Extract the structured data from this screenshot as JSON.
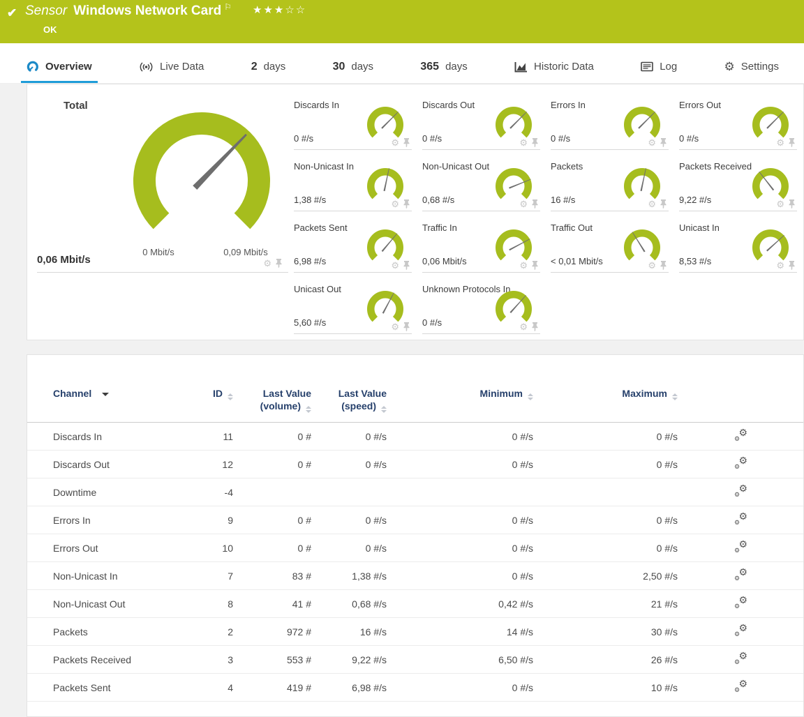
{
  "header": {
    "kind_label": "Sensor",
    "title": "Windows Network Card",
    "status": "OK",
    "rating_filled": 3,
    "rating_total": 5
  },
  "tabs": [
    {
      "id": "overview",
      "label": "Overview",
      "icon": "gauge-icon",
      "active": true
    },
    {
      "id": "live-data",
      "label": "Live Data",
      "icon": "live-data-icon",
      "active": false
    },
    {
      "id": "2-days",
      "prefix": "2",
      "label": "days",
      "active": false
    },
    {
      "id": "30-days",
      "prefix": "30",
      "label": "days",
      "active": false
    },
    {
      "id": "365-days",
      "prefix": "365",
      "label": "days",
      "active": false
    },
    {
      "id": "historic-data",
      "label": "Historic Data",
      "icon": "historic-data-icon",
      "active": false
    },
    {
      "id": "log",
      "label": "Log",
      "icon": "log-icon",
      "active": false
    },
    {
      "id": "settings",
      "label": "Settings",
      "icon": "settings-icon",
      "active": false
    }
  ],
  "total_gauge": {
    "title": "Total",
    "value": "0,06 Mbit/s",
    "scale_min": "0 Mbit/s",
    "scale_max": "0,09 Mbit/s",
    "needle_deg": 44
  },
  "gauges": [
    {
      "title": "Discards In",
      "value": "0 #/s",
      "needle_deg": 45
    },
    {
      "title": "Discards Out",
      "value": "0 #/s",
      "needle_deg": 45
    },
    {
      "title": "Errors In",
      "value": "0 #/s",
      "needle_deg": 45
    },
    {
      "title": "Errors Out",
      "value": "0 #/s",
      "needle_deg": 45
    },
    {
      "title": "Non-Unicast In",
      "value": "1,38 #/s",
      "needle_deg": 12
    },
    {
      "title": "Non-Unicast Out",
      "value": "0,68 #/s",
      "needle_deg": 68
    },
    {
      "title": "Packets",
      "value": "16 #/s",
      "needle_deg": 12
    },
    {
      "title": "Packets Received",
      "value": "9,22 #/s",
      "needle_deg": -38
    },
    {
      "title": "Packets Sent",
      "value": "6,98 #/s",
      "needle_deg": 40
    },
    {
      "title": "Traffic In",
      "value": "0,06 Mbit/s",
      "needle_deg": 62
    },
    {
      "title": "Traffic Out",
      "value": "< 0,01 Mbit/s",
      "needle_deg": -32
    },
    {
      "title": "Unicast In",
      "value": "8,53 #/s",
      "needle_deg": 48
    },
    {
      "title": "Unicast Out",
      "value": "5,60 #/s",
      "needle_deg": 28
    },
    {
      "title": "Unknown Protocols In",
      "value": "0 #/s",
      "needle_deg": 42
    }
  ],
  "table": {
    "columns": [
      {
        "key": "channel",
        "label": "Channel",
        "sort": "sorted-desc"
      },
      {
        "key": "id",
        "label": "ID",
        "sort": "both"
      },
      {
        "key": "last-value-volume",
        "label": "Last Value",
        "label2": "(volume)",
        "sort": "both"
      },
      {
        "key": "last-value-speed",
        "label": "Last Value",
        "label2": "(speed)",
        "sort": "both"
      },
      {
        "key": "minimum",
        "label": "Minimum",
        "sort": "both"
      },
      {
        "key": "maximum",
        "label": "Maximum",
        "sort": "both"
      }
    ],
    "rows": [
      {
        "channel": "Discards In",
        "id": "11",
        "volume": "0 #",
        "speed": "0 #/s",
        "minimum": "0 #/s",
        "maximum": "0 #/s"
      },
      {
        "channel": "Discards Out",
        "id": "12",
        "volume": "0 #",
        "speed": "0 #/s",
        "minimum": "0 #/s",
        "maximum": "0 #/s"
      },
      {
        "channel": "Downtime",
        "id": "-4",
        "volume": "",
        "speed": "",
        "minimum": "",
        "maximum": ""
      },
      {
        "channel": "Errors In",
        "id": "9",
        "volume": "0 #",
        "speed": "0 #/s",
        "minimum": "0 #/s",
        "maximum": "0 #/s"
      },
      {
        "channel": "Errors Out",
        "id": "10",
        "volume": "0 #",
        "speed": "0 #/s",
        "minimum": "0 #/s",
        "maximum": "0 #/s"
      },
      {
        "channel": "Non-Unicast In",
        "id": "7",
        "volume": "83 #",
        "speed": "1,38 #/s",
        "minimum": "0 #/s",
        "maximum": "2,50 #/s"
      },
      {
        "channel": "Non-Unicast Out",
        "id": "8",
        "volume": "41 #",
        "speed": "0,68 #/s",
        "minimum": "0,42 #/s",
        "maximum": "21 #/s"
      },
      {
        "channel": "Packets",
        "id": "2",
        "volume": "972 #",
        "speed": "16 #/s",
        "minimum": "14 #/s",
        "maximum": "30 #/s"
      },
      {
        "channel": "Packets Received",
        "id": "3",
        "volume": "553 #",
        "speed": "9,22 #/s",
        "minimum": "6,50 #/s",
        "maximum": "26 #/s"
      },
      {
        "channel": "Packets Sent",
        "id": "4",
        "volume": "419 #",
        "speed": "6,98 #/s",
        "minimum": "0 #/s",
        "maximum": "10 #/s"
      }
    ]
  },
  "icon_glyphs": {
    "check": "✔",
    "flag": "⚐",
    "star_filled": "★",
    "star_empty": "☆",
    "gear": "⚙"
  },
  "colors": {
    "brand_green": "#b4c31b",
    "gauge_green": "#a6bd1e",
    "tab_active_blue": "#1e9cd8",
    "table_header_navy": "#26406b",
    "needle_gray": "#6e6e6e",
    "page_bg": "#f1f1f1"
  }
}
